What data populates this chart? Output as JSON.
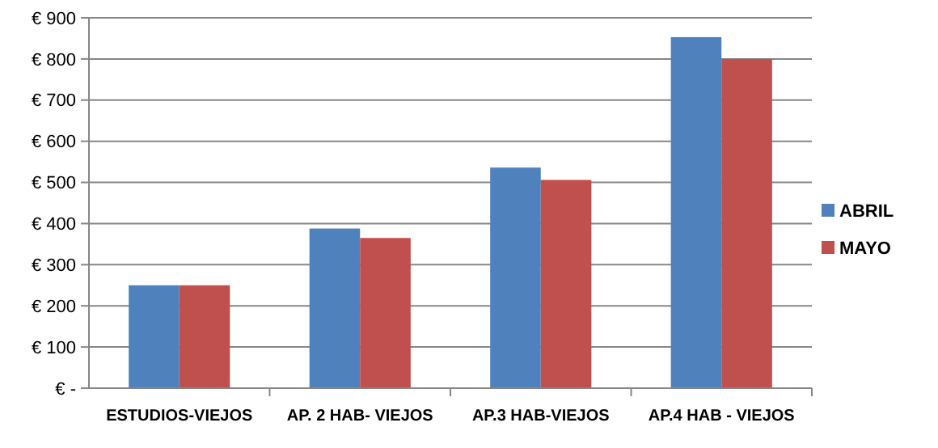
{
  "chart_data": {
    "type": "bar",
    "categories": [
      "ESTUDIOS-VIEJOS",
      "AP. 2 HAB- VIEJOS",
      "AP.3 HAB-VIEJOS",
      "AP.4 HAB - VIEJOS"
    ],
    "series": [
      {
        "name": "ABRIL",
        "color": "#4f81bd",
        "values": [
          250,
          388,
          536,
          853
        ]
      },
      {
        "name": "MAYO",
        "color": "#c0504d",
        "values": [
          250,
          365,
          506,
          800
        ]
      }
    ],
    "ylim": [
      0,
      900
    ],
    "yticks": [
      {
        "value": 0,
        "label": "€ -"
      },
      {
        "value": 100,
        "label": "€ 100"
      },
      {
        "value": 200,
        "label": "€ 200"
      },
      {
        "value": 300,
        "label": "€ 300"
      },
      {
        "value": 400,
        "label": "€ 400"
      },
      {
        "value": 500,
        "label": "€ 500"
      },
      {
        "value": 600,
        "label": "€ 600"
      },
      {
        "value": 700,
        "label": "€ 700"
      },
      {
        "value": 800,
        "label": "€ 800"
      },
      {
        "value": 900,
        "label": "€ 900"
      }
    ],
    "grid": "y",
    "legend": "right"
  }
}
